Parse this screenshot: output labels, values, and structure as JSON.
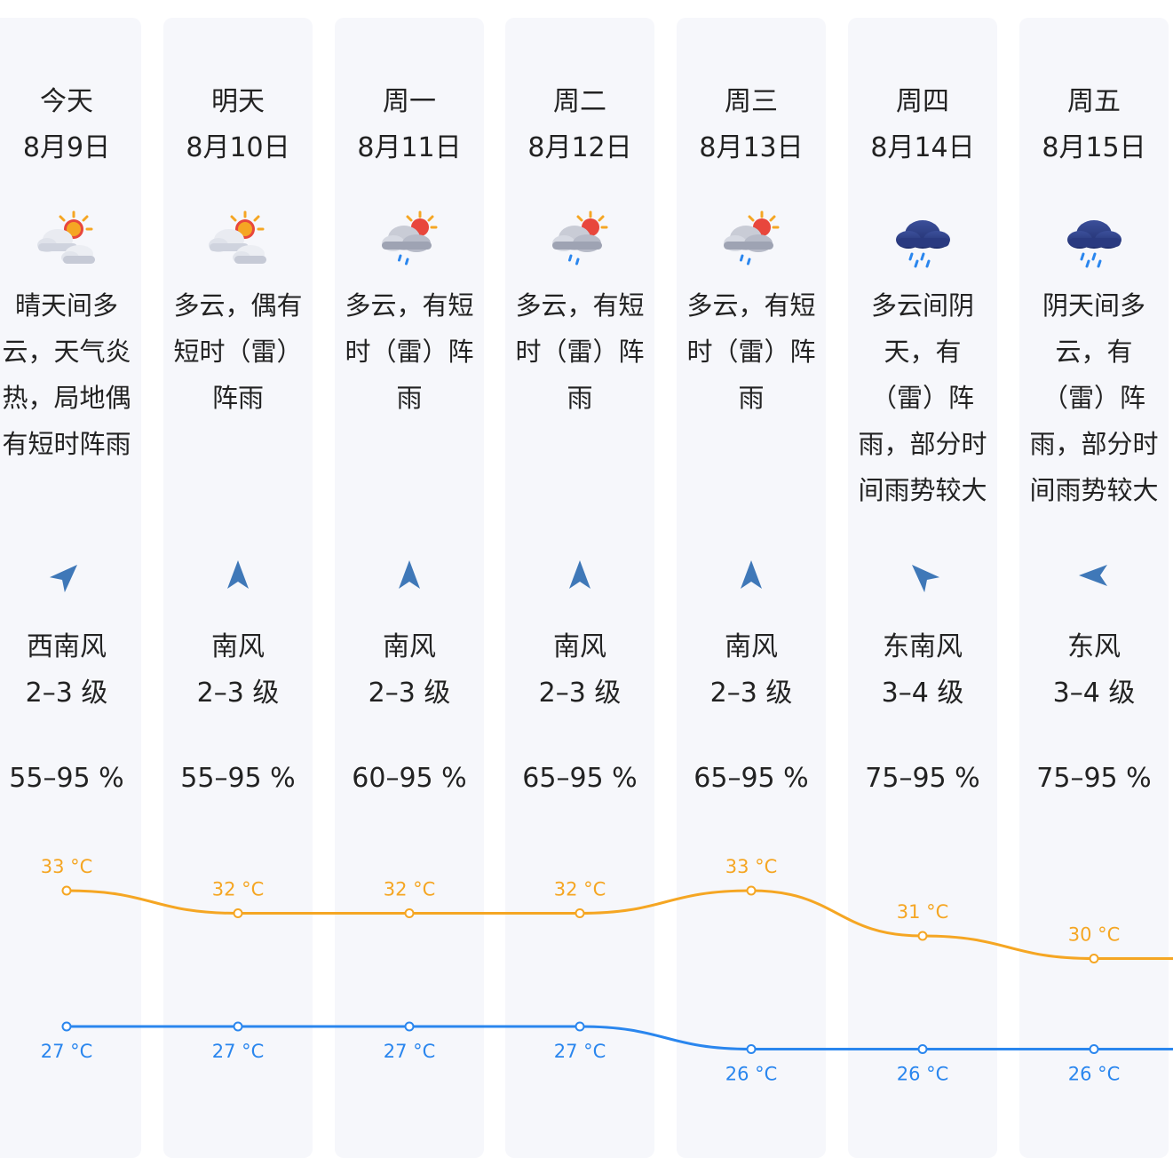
{
  "days": [
    {
      "day": "今天",
      "date": "8月9日",
      "icon": "sun-cloud-icon",
      "desc": [
        "晴天间多",
        "云，天气炎",
        "热，局地偶",
        "有短时阵雨"
      ],
      "wind_icon": "wind-direction-arrow-icon",
      "wind_angle": 45,
      "wind_dir": "西南风",
      "wind_level": "2–3 级",
      "humidity": "55–95 %"
    },
    {
      "day": "明天",
      "date": "8月10日",
      "icon": "sun-cloud-icon",
      "desc": [
        "多云，偶有",
        "短时（雷）",
        "阵雨"
      ],
      "wind_icon": "wind-direction-arrow-icon",
      "wind_angle": 0,
      "wind_dir": "南风",
      "wind_level": "2–3 级",
      "humidity": "55–95 %"
    },
    {
      "day": "周一",
      "date": "8月11日",
      "icon": "sun-cloud-rain-icon",
      "desc": [
        "多云，有短",
        "时（雷）阵",
        "雨"
      ],
      "wind_icon": "wind-direction-arrow-icon",
      "wind_angle": 0,
      "wind_dir": "南风",
      "wind_level": "2–3 级",
      "humidity": "60–95 %"
    },
    {
      "day": "周二",
      "date": "8月12日",
      "icon": "sun-cloud-rain-icon",
      "desc": [
        "多云，有短",
        "时（雷）阵",
        "雨"
      ],
      "wind_icon": "wind-direction-arrow-icon",
      "wind_angle": 0,
      "wind_dir": "南风",
      "wind_level": "2–3 级",
      "humidity": "65–95 %"
    },
    {
      "day": "周三",
      "date": "8月13日",
      "icon": "sun-cloud-rain-icon",
      "desc": [
        "多云，有短",
        "时（雷）阵",
        "雨"
      ],
      "wind_icon": "wind-direction-arrow-icon",
      "wind_angle": 0,
      "wind_dir": "南风",
      "wind_level": "2–3 级",
      "humidity": "65–95 %"
    },
    {
      "day": "周四",
      "date": "8月14日",
      "icon": "dark-cloud-rain-icon",
      "desc": [
        "多云间阴",
        "天，有",
        "（雷）阵",
        "雨，部分时",
        "间雨势较大"
      ],
      "wind_icon": "wind-direction-arrow-icon",
      "wind_angle": -45,
      "wind_dir": "东南风",
      "wind_level": "3–4 级",
      "humidity": "75–95 %"
    },
    {
      "day": "周五",
      "date": "8月15日",
      "icon": "dark-cloud-rain-icon",
      "desc": [
        "阴天间多",
        "云，有",
        "（雷）阵",
        "雨，部分时",
        "间雨势较大"
      ],
      "wind_icon": "wind-direction-arrow-icon",
      "wind_angle": -90,
      "wind_dir": "东风",
      "wind_level": "3–4 级",
      "humidity": "75–95 %"
    }
  ],
  "colors": {
    "high": "#f5a623",
    "low": "#2a86ee",
    "arrow": "#3f78b8"
  },
  "chart_data": {
    "type": "line",
    "categories": [
      "今天",
      "明天",
      "周一",
      "周二",
      "周三",
      "周四",
      "周五"
    ],
    "unit": "°C",
    "series": [
      {
        "values": [
          33,
          32,
          32,
          32,
          33,
          31,
          30
        ]
      },
      {
        "values": [
          27,
          27,
          27,
          27,
          26,
          26,
          26
        ]
      }
    ],
    "point_labels": {
      "high": [
        "33 °C",
        "32 °C",
        "32 °C",
        "32 °C",
        "33 °C",
        "31 °C",
        "30 °C"
      ],
      "low": [
        "27 °C",
        "27 °C",
        "27 °C",
        "27 °C",
        "26 °C",
        "26 °C",
        "26 °C"
      ]
    }
  }
}
